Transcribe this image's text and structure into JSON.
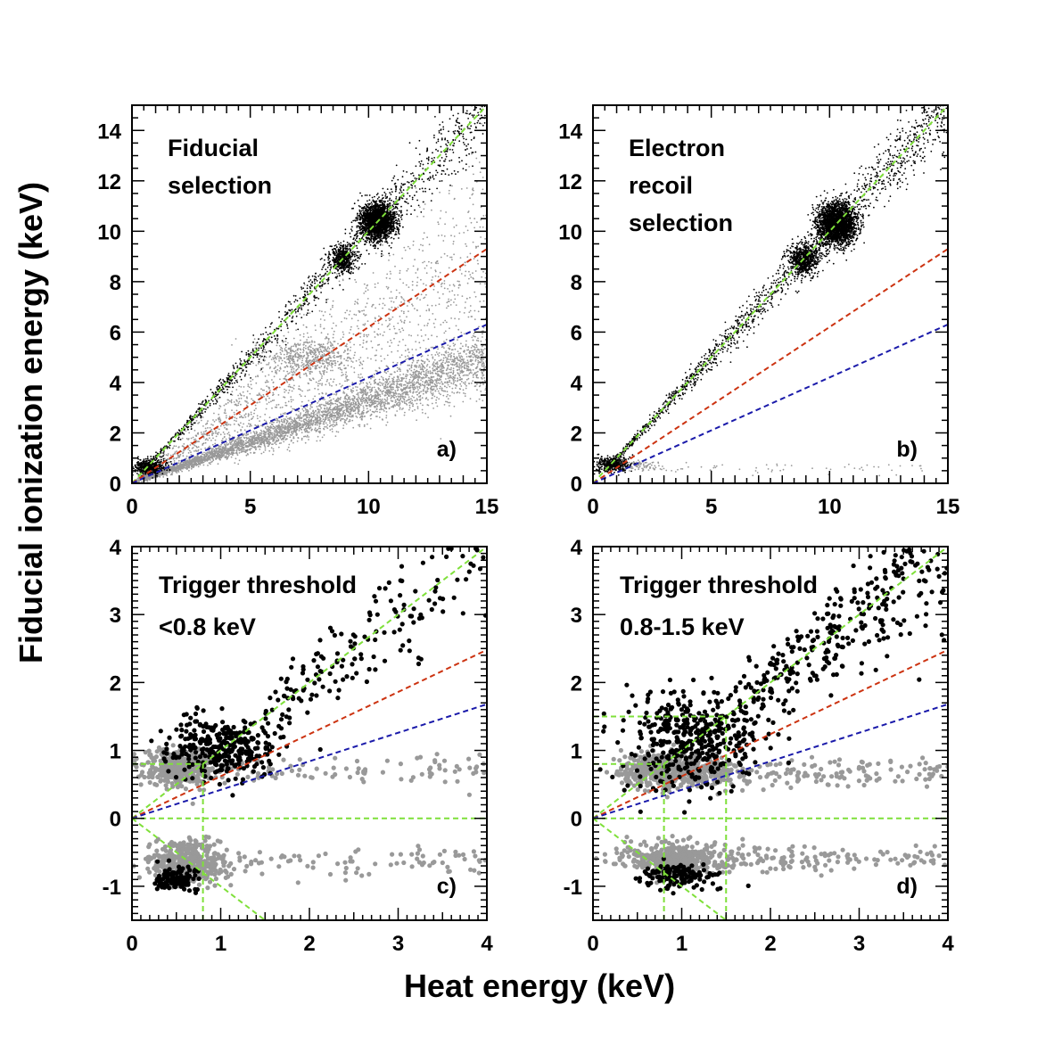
{
  "figure": {
    "xlabel": "Heat energy (keV)",
    "ylabel": "Fiducial ionization energy (keV)"
  },
  "colors": {
    "black_points": "#000000",
    "gray_points": "#999999",
    "green_line": "#7fe03a",
    "red_line": "#cc3311",
    "blue_line": "#1a1aaa"
  },
  "chart_data": [
    {
      "type": "scatter",
      "panel": "a)",
      "annotation": [
        "Fiducial",
        "selection"
      ],
      "xlim": [
        0,
        15
      ],
      "ylim": [
        0,
        15
      ],
      "xticks": [
        0,
        5,
        10,
        15
      ],
      "yticks": [
        0,
        2,
        4,
        6,
        8,
        10,
        12,
        14
      ],
      "lines": [
        {
          "name": "electron recoil band",
          "color": "green",
          "x": [
            0,
            15
          ],
          "y": [
            0,
            15
          ]
        },
        {
          "name": "neutron band upper",
          "color": "red",
          "x": [
            0,
            15
          ],
          "y": [
            0,
            9.3
          ]
        },
        {
          "name": "neutron band lower",
          "color": "blue",
          "x": [
            0,
            15
          ],
          "y": [
            0,
            6.3
          ]
        }
      ],
      "clusters": [
        {
          "series": "black",
          "cx": 10.4,
          "cy": 10.4,
          "sx": 0.35,
          "sy": 0.35,
          "n": 2200
        },
        {
          "series": "black",
          "cx": 8.9,
          "cy": 8.9,
          "sx": 0.25,
          "sy": 0.25,
          "n": 450
        },
        {
          "series": "black",
          "cx": 0.7,
          "cy": 0.65,
          "sx": 0.35,
          "sy": 0.15,
          "n": 500
        },
        {
          "series": "gray",
          "cx": 7.5,
          "cy": 5.0,
          "sx": 0.9,
          "sy": 0.35,
          "n": 500
        }
      ],
      "bands": [
        {
          "series": "black",
          "x_range": [
            0.5,
            15
          ],
          "ratio": 1.0,
          "spread": 0.05,
          "n": 1200
        },
        {
          "series": "gray",
          "x_range": [
            0.5,
            15
          ],
          "ratio": 0.33,
          "spread": 0.12,
          "n": 4000
        },
        {
          "series": "gray",
          "x_range": [
            0.2,
            15
          ],
          "ratio": 0.6,
          "spread": 0.25,
          "n": 1500
        }
      ]
    },
    {
      "type": "scatter",
      "panel": "b)",
      "annotation": [
        "Electron",
        "recoil",
        "selection"
      ],
      "xlim": [
        0,
        15
      ],
      "ylim": [
        0,
        15
      ],
      "xticks": [
        0,
        5,
        10,
        15
      ],
      "yticks": [
        0,
        2,
        4,
        6,
        8,
        10,
        12,
        14
      ],
      "lines": [
        {
          "name": "electron recoil band",
          "color": "green",
          "x": [
            0,
            15
          ],
          "y": [
            0,
            15
          ]
        },
        {
          "name": "neutron band upper",
          "color": "red",
          "x": [
            0,
            15
          ],
          "y": [
            0,
            9.3
          ]
        },
        {
          "name": "neutron band lower",
          "color": "blue",
          "x": [
            0,
            15
          ],
          "y": [
            0,
            6.3
          ]
        }
      ],
      "clusters": [
        {
          "series": "black",
          "cx": 10.3,
          "cy": 10.3,
          "sx": 0.4,
          "sy": 0.4,
          "n": 2500
        },
        {
          "series": "black",
          "cx": 8.9,
          "cy": 8.9,
          "sx": 0.3,
          "sy": 0.3,
          "n": 700
        },
        {
          "series": "black",
          "cx": 0.8,
          "cy": 0.75,
          "sx": 0.35,
          "sy": 0.15,
          "n": 400
        },
        {
          "series": "gray",
          "cx": 1.8,
          "cy": 0.7,
          "sx": 0.6,
          "sy": 0.1,
          "n": 120
        }
      ],
      "bands": [
        {
          "series": "black",
          "x_range": [
            0.5,
            15
          ],
          "ratio": 1.0,
          "spread": 0.05,
          "n": 1500
        },
        {
          "series": "gray",
          "x_range": [
            2,
            14
          ],
          "ratio": 0.0,
          "spread": 0.0,
          "offset": 0.6,
          "n": 60
        }
      ]
    },
    {
      "type": "scatter",
      "panel": "c)",
      "annotation": [
        "Trigger threshold",
        "<0.8 keV"
      ],
      "xlim": [
        0,
        4
      ],
      "ylim": [
        -1.5,
        4
      ],
      "xticks": [
        0,
        1,
        2,
        3,
        4
      ],
      "yticks": [
        -1,
        0,
        1,
        2,
        3,
        4
      ],
      "lines": [
        {
          "name": "electron recoil band",
          "color": "green",
          "x": [
            0,
            4
          ],
          "y": [
            0,
            4
          ]
        },
        {
          "name": "neutron band upper",
          "color": "red",
          "x": [
            0,
            4
          ],
          "y": [
            0,
            2.48
          ]
        },
        {
          "name": "neutron band lower",
          "color": "blue",
          "x": [
            0,
            4
          ],
          "y": [
            0,
            1.68
          ]
        },
        {
          "name": "zero line",
          "color": "green",
          "x": [
            0,
            4
          ],
          "y": [
            0,
            0
          ]
        },
        {
          "name": "threshold level",
          "color": "green",
          "x": [
            0,
            0.8
          ],
          "y": [
            0.8,
            0.8
          ]
        },
        {
          "name": "threshold vertical",
          "color": "green",
          "x": [
            0.8,
            0.8
          ],
          "y": [
            -1.5,
            0.8
          ]
        },
        {
          "name": "lower diagonal",
          "color": "green",
          "x": [
            0,
            1.5
          ],
          "y": [
            0,
            -1.5
          ]
        }
      ],
      "clusters": [
        {
          "series": "gray",
          "cx": 0.55,
          "cy": 0.75,
          "sx": 0.22,
          "sy": 0.13,
          "n": 450
        },
        {
          "series": "gray",
          "cx": 0.6,
          "cy": -0.65,
          "sx": 0.22,
          "sy": 0.15,
          "n": 400
        },
        {
          "series": "black",
          "cx": 1.0,
          "cy": 1.05,
          "sx": 0.3,
          "sy": 0.22,
          "n": 320
        },
        {
          "series": "black",
          "cx": 0.5,
          "cy": -0.9,
          "sx": 0.13,
          "sy": 0.09,
          "n": 110
        }
      ],
      "bands": [
        {
          "series": "black",
          "x_range": [
            1.5,
            4
          ],
          "ratio": 1.0,
          "spread": 0.12,
          "n": 170
        },
        {
          "series": "gray",
          "x_range": [
            1.0,
            4
          ],
          "ratio": 0.0,
          "spread": 0.0,
          "offset": 0.7,
          "n": 90
        },
        {
          "series": "gray",
          "x_range": [
            1.0,
            4
          ],
          "ratio": 0.0,
          "spread": 0.0,
          "offset": -0.65,
          "n": 90
        }
      ]
    },
    {
      "type": "scatter",
      "panel": "d)",
      "annotation": [
        "Trigger threshold",
        "0.8-1.5 keV"
      ],
      "xlim": [
        0,
        4
      ],
      "ylim": [
        -1.5,
        4
      ],
      "xticks": [
        0,
        1,
        2,
        3,
        4
      ],
      "yticks": [
        -1,
        0,
        1,
        2,
        3,
        4
      ],
      "lines": [
        {
          "name": "electron recoil band",
          "color": "green",
          "x": [
            0,
            4
          ],
          "y": [
            0,
            4
          ]
        },
        {
          "name": "neutron band upper",
          "color": "red",
          "x": [
            0,
            4
          ],
          "y": [
            0,
            2.48
          ]
        },
        {
          "name": "neutron band lower",
          "color": "blue",
          "x": [
            0,
            4
          ],
          "y": [
            0,
            1.68
          ]
        },
        {
          "name": "zero line",
          "color": "green",
          "x": [
            0,
            4
          ],
          "y": [
            0,
            0
          ]
        },
        {
          "name": "threshold level 0.8",
          "color": "green",
          "x": [
            0,
            0.8
          ],
          "y": [
            0.8,
            0.8
          ]
        },
        {
          "name": "threshold level 1.5",
          "color": "green",
          "x": [
            0,
            1.5
          ],
          "y": [
            1.5,
            1.5
          ]
        },
        {
          "name": "threshold vertical 0.8",
          "color": "green",
          "x": [
            0.8,
            0.8
          ],
          "y": [
            -1.5,
            0.8
          ]
        },
        {
          "name": "threshold vertical 1.5",
          "color": "green",
          "x": [
            1.5,
            1.5
          ],
          "y": [
            -1.5,
            1.5
          ]
        },
        {
          "name": "lower diagonal",
          "color": "green",
          "x": [
            0,
            1.5
          ],
          "y": [
            0,
            -1.5
          ]
        }
      ],
      "clusters": [
        {
          "series": "gray",
          "cx": 0.9,
          "cy": 0.7,
          "sx": 0.3,
          "sy": 0.13,
          "n": 550
        },
        {
          "series": "gray",
          "cx": 0.9,
          "cy": -0.6,
          "sx": 0.3,
          "sy": 0.12,
          "n": 450
        },
        {
          "series": "black",
          "cx": 1.15,
          "cy": 1.15,
          "sx": 0.35,
          "sy": 0.35,
          "n": 420
        },
        {
          "series": "black",
          "cx": 0.95,
          "cy": -0.85,
          "sx": 0.25,
          "sy": 0.08,
          "n": 140
        }
      ],
      "bands": [
        {
          "series": "black",
          "x_range": [
            1.6,
            4
          ],
          "ratio": 1.0,
          "spread": 0.15,
          "n": 320
        },
        {
          "series": "gray",
          "x_range": [
            1.3,
            4
          ],
          "ratio": 0.0,
          "spread": 0.0,
          "offset": 0.65,
          "n": 150
        },
        {
          "series": "gray",
          "x_range": [
            1.3,
            4
          ],
          "ratio": 0.0,
          "spread": 0.0,
          "offset": -0.6,
          "n": 130
        }
      ]
    }
  ]
}
